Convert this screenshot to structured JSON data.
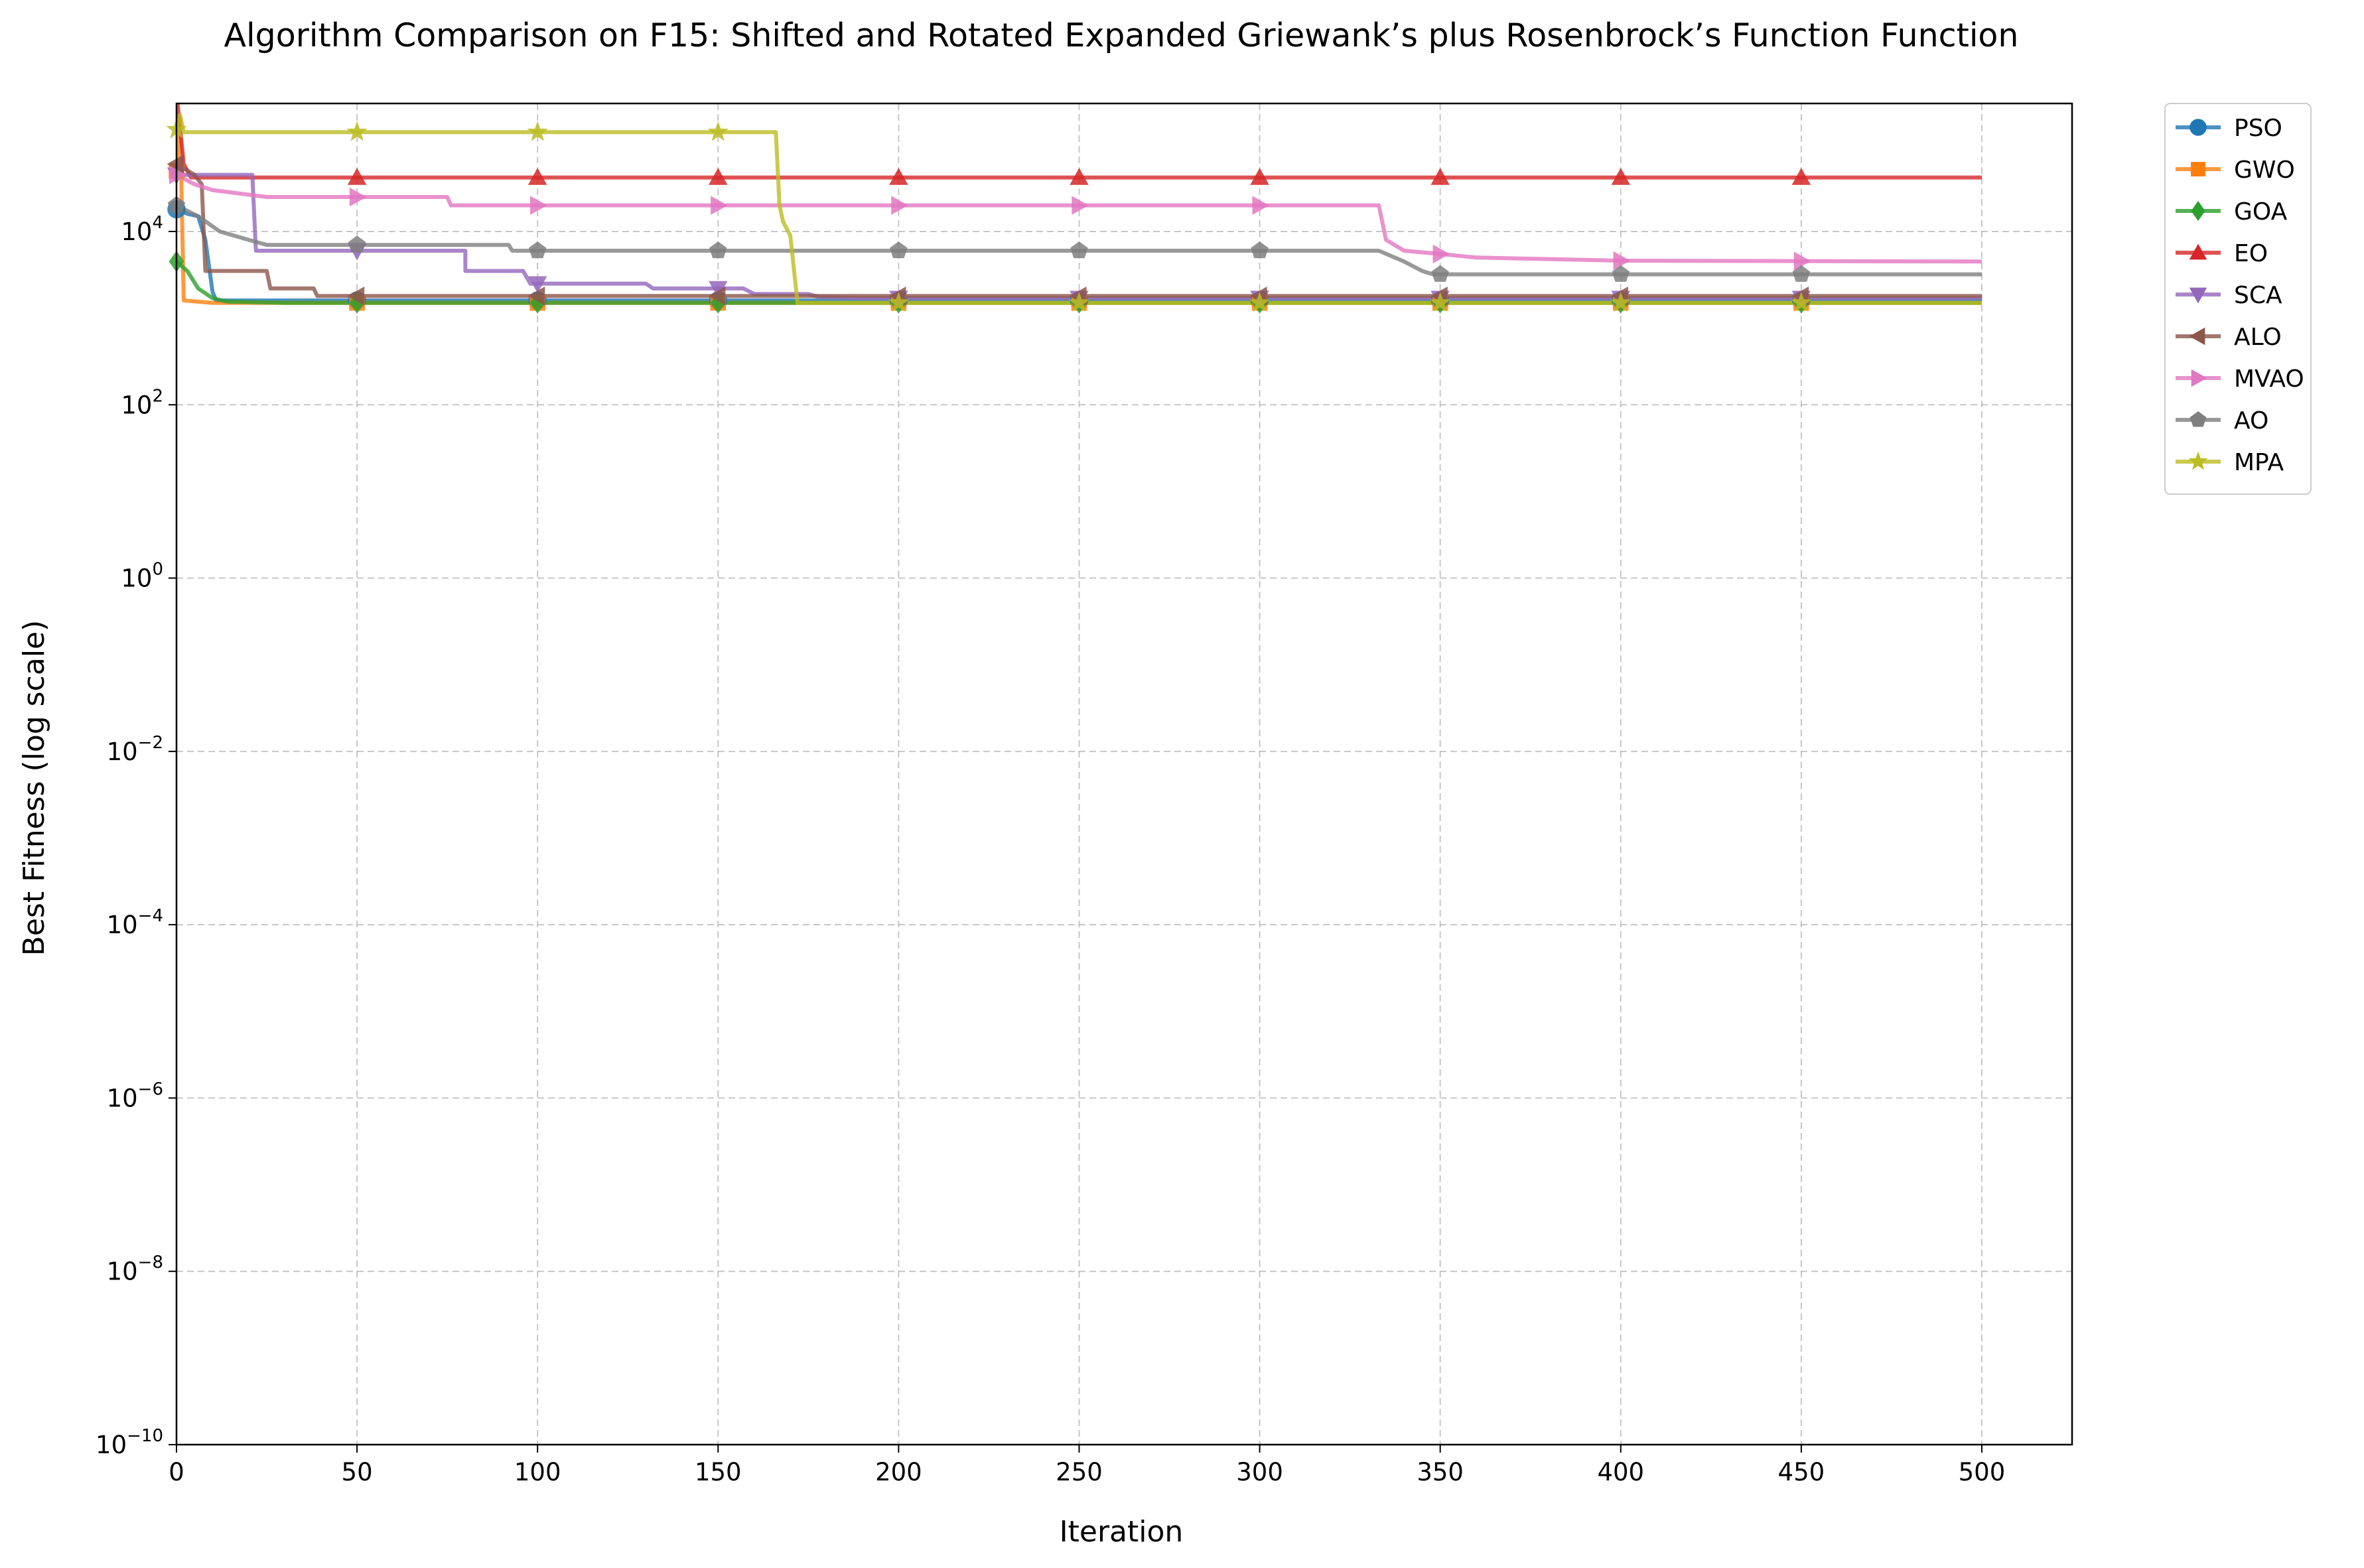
{
  "chart_data": {
    "type": "line",
    "title": "Algorithm Comparison on F15: Shifted and Rotated Expanded Griewank’s plus Rosenbrock’s Function Function",
    "xlabel": "Iteration",
    "ylabel": "Best Fitness (log scale)",
    "xlim": [
      0,
      525
    ],
    "ylog": true,
    "ylim": [
      1e-10,
      300000
    ],
    "xticks": [
      0,
      50,
      100,
      150,
      200,
      250,
      300,
      350,
      400,
      450,
      500
    ],
    "xtick_labels": [
      "0",
      "50",
      "100",
      "150",
      "200",
      "250",
      "300",
      "350",
      "400",
      "450",
      "500"
    ],
    "yticks": [
      -10,
      -8,
      -6,
      -4,
      -2,
      0,
      2,
      4
    ],
    "ytick_labels": [
      {
        "base": "10",
        "exp": "−10"
      },
      {
        "base": "10",
        "exp": "−8"
      },
      {
        "base": "10",
        "exp": "−6"
      },
      {
        "base": "10",
        "exp": "−4"
      },
      {
        "base": "10",
        "exp": "−2"
      },
      {
        "base": "10",
        "exp": "0"
      },
      {
        "base": "10",
        "exp": "2"
      },
      {
        "base": "10",
        "exp": "4"
      }
    ],
    "grid": true,
    "legend": "outside-upper-right",
    "series": [
      {
        "name": "PSO",
        "color": "#1f77b4",
        "marker": "circle",
        "points": [
          [
            0,
            18000
          ],
          [
            3,
            16000
          ],
          [
            6,
            15000
          ],
          [
            8,
            8000
          ],
          [
            10,
            2000
          ],
          [
            11,
            1600
          ],
          [
            500,
            1600
          ]
        ]
      },
      {
        "name": "GWO",
        "color": "#ff7f0e",
        "marker": "square",
        "points": [
          [
            0,
            50000
          ],
          [
            1,
            200000
          ],
          [
            2,
            1600
          ],
          [
            10,
            1500
          ],
          [
            500,
            1500
          ]
        ]
      },
      {
        "name": "GOA",
        "color": "#2ca02c",
        "marker": "diamond",
        "points": [
          [
            0,
            4500
          ],
          [
            3,
            3500
          ],
          [
            6,
            2200
          ],
          [
            10,
            1700
          ],
          [
            14,
            1550
          ],
          [
            30,
            1500
          ],
          [
            500,
            1500
          ]
        ]
      },
      {
        "name": "EO",
        "color": "#d62728",
        "marker": "triangle-up",
        "points": [
          [
            0,
            400000
          ],
          [
            2,
            60000
          ],
          [
            4,
            42000
          ],
          [
            500,
            42000
          ]
        ]
      },
      {
        "name": "SCA",
        "color": "#9467bd",
        "marker": "triangle-down",
        "points": [
          [
            0,
            45000
          ],
          [
            21,
            45000
          ],
          [
            22,
            6000
          ],
          [
            80,
            6000
          ],
          [
            80,
            3500
          ],
          [
            96,
            3500
          ],
          [
            98,
            2500
          ],
          [
            130,
            2500
          ],
          [
            132,
            2200
          ],
          [
            157,
            2200
          ],
          [
            160,
            1900
          ],
          [
            175,
            1900
          ],
          [
            178,
            1750
          ],
          [
            190,
            1700
          ],
          [
            500,
            1700
          ]
        ]
      },
      {
        "name": "ALO",
        "color": "#8c564b",
        "marker": "triangle-left",
        "points": [
          [
            0,
            60000
          ],
          [
            5,
            45000
          ],
          [
            7,
            35000
          ],
          [
            8,
            3500
          ],
          [
            25,
            3500
          ],
          [
            26,
            2200
          ],
          [
            38,
            2200
          ],
          [
            39,
            1800
          ],
          [
            500,
            1800
          ]
        ]
      },
      {
        "name": "MVAO",
        "color": "#e377c2",
        "marker": "triangle-right",
        "points": [
          [
            0,
            45000
          ],
          [
            5,
            35000
          ],
          [
            10,
            30000
          ],
          [
            25,
            25000
          ],
          [
            75,
            25000
          ],
          [
            76,
            20000
          ],
          [
            333,
            20000
          ],
          [
            335,
            8000
          ],
          [
            340,
            6000
          ],
          [
            350,
            5500
          ],
          [
            360,
            5000
          ],
          [
            380,
            4800
          ],
          [
            400,
            4600
          ],
          [
            500,
            4500
          ]
        ]
      },
      {
        "name": "AO",
        "color": "#7f7f7f",
        "marker": "pentagon",
        "points": [
          [
            0,
            20000
          ],
          [
            6,
            15000
          ],
          [
            12,
            10000
          ],
          [
            20,
            8000
          ],
          [
            25,
            7000
          ],
          [
            92,
            7000
          ],
          [
            93,
            6000
          ],
          [
            333,
            6000
          ],
          [
            340,
            4500
          ],
          [
            345,
            3500
          ],
          [
            348,
            3200
          ],
          [
            500,
            3200
          ]
        ]
      },
      {
        "name": "MPA",
        "color": "#bcbd22",
        "marker": "star",
        "points": [
          [
            0,
            150000
          ],
          [
            1,
            220000
          ],
          [
            2,
            140000
          ],
          [
            166,
            140000
          ],
          [
            167,
            20000
          ],
          [
            168,
            13000
          ],
          [
            170,
            9000
          ],
          [
            172,
            1500
          ],
          [
            500,
            1500
          ]
        ]
      }
    ]
  }
}
